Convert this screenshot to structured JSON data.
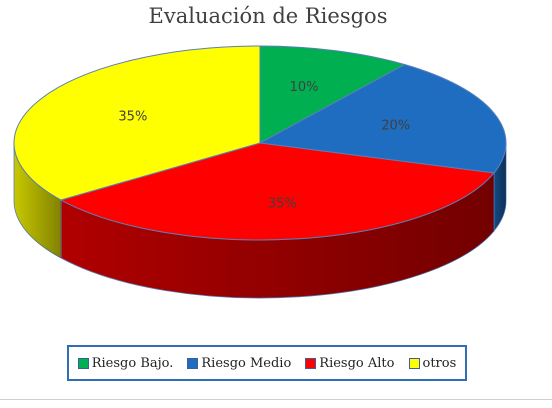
{
  "chart_data": {
    "type": "pie",
    "title": "Evaluación de Riesgos",
    "categories": [
      "Riesgo Bajo.",
      "Riesgo Medio",
      "Riesgo Alto",
      "otros"
    ],
    "values": [
      10,
      20,
      35,
      35
    ],
    "labels": [
      "10%",
      "20%",
      "35%",
      "35%"
    ],
    "colors": [
      "#00b050",
      "#1f6dc0",
      "#ff0000",
      "#ffff00"
    ],
    "side_colors": [
      "#007a38",
      "#134a85",
      "#b00000",
      "#c8c800"
    ],
    "legend_position": "bottom",
    "style": "3d"
  }
}
